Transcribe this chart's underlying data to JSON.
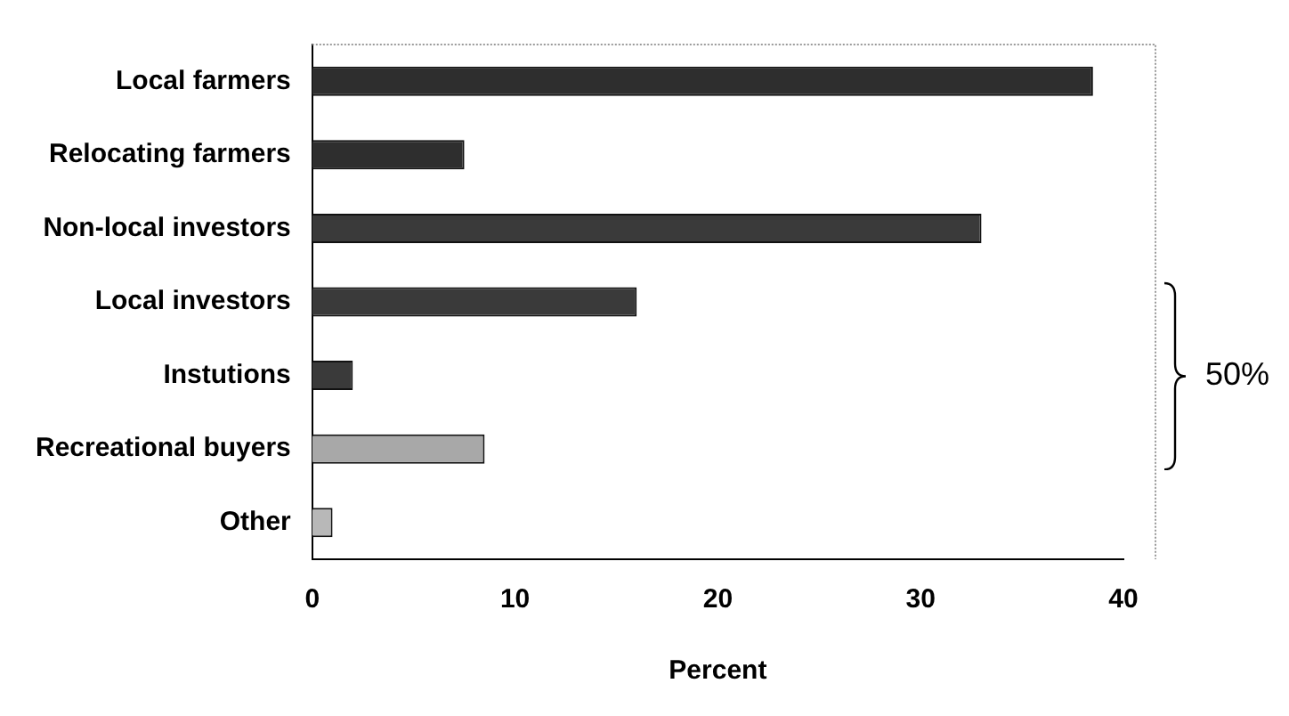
{
  "chart_data": {
    "type": "bar",
    "orientation": "horizontal",
    "xlabel": "Percent",
    "categories": [
      "Local farmers",
      "Relocating farmers",
      "Non-local investors",
      "Local investors",
      "Instutions",
      "Recreational buyers",
      "Other"
    ],
    "values": [
      38.5,
      7.5,
      33,
      16,
      2,
      8.5,
      1
    ],
    "colors": [
      "#2e2e2e",
      "#2e2e2e",
      "#3a3a3a",
      "#3a3a3a",
      "#3a3a3a",
      "#a8a8a8",
      "#b8b8b8"
    ],
    "xlim": [
      0,
      40
    ],
    "xticks": [
      0,
      10,
      20,
      30,
      40
    ],
    "grid": false,
    "legend": false,
    "annotations": [
      "50%"
    ]
  }
}
